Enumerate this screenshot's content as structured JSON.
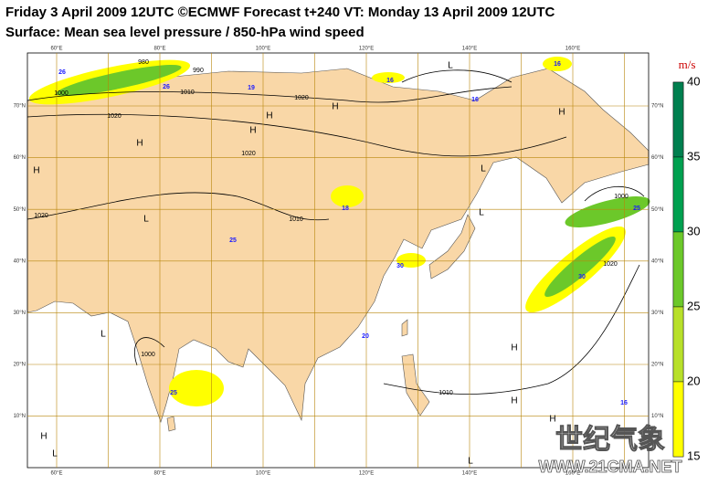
{
  "header": {
    "title": "Friday 3 April 2009 12UTC ©ECMWF Forecast t+240 VT: Monday 13 April 2009 12UTC",
    "subtitle": "Surface: Mean sea level pressure / 850-hPa wind speed"
  },
  "map": {
    "longitude_labels": [
      "60°E",
      "80°E",
      "100°E",
      "120°E",
      "140°E",
      "160°E"
    ],
    "latitude_labels": [
      "70°N",
      "60°N",
      "50°N",
      "40°N",
      "30°N",
      "20°N",
      "10°N"
    ],
    "pressure_centers": [
      "H",
      "H",
      "H",
      "H",
      "H",
      "H",
      "H",
      "H",
      "H",
      "H",
      "L",
      "L",
      "L",
      "L",
      "L",
      "L",
      "L"
    ],
    "isobar_labels": [
      "980",
      "990",
      "1000",
      "1010",
      "1020",
      "1020",
      "1020",
      "1020",
      "1010",
      "1000",
      "1010",
      "1020",
      "1000"
    ],
    "wind_max_labels": [
      "16",
      "16",
      "16",
      "19",
      "26",
      "26",
      "18",
      "25",
      "30",
      "30",
      "25",
      "16",
      "25",
      "20"
    ]
  },
  "legend": {
    "unit": "m/s",
    "levels": [
      "40",
      "35",
      "30",
      "25",
      "20",
      "15"
    ]
  },
  "watermark": {
    "name": "世纪气象",
    "url": "WWW.21CMA.NET"
  }
}
